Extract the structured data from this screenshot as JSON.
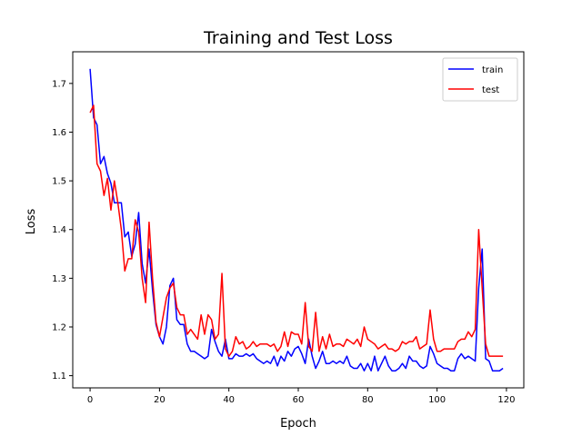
{
  "chart_data": {
    "type": "line",
    "title": "Training and Test Loss",
    "xlabel": "Epoch",
    "ylabel": "Loss",
    "xlim": [
      -5,
      125
    ],
    "ylim": [
      1.075,
      1.765
    ],
    "xticks": [
      0,
      20,
      40,
      60,
      80,
      100,
      120
    ],
    "yticks": [
      1.1,
      1.2,
      1.3,
      1.4,
      1.5,
      1.6,
      1.7
    ],
    "grid": false,
    "legend": "top-right",
    "series": [
      {
        "name": "train",
        "color": "#0000ff",
        "values": [
          1.73,
          1.63,
          1.615,
          1.535,
          1.55,
          1.515,
          1.495,
          1.455,
          1.455,
          1.455,
          1.385,
          1.395,
          1.345,
          1.37,
          1.435,
          1.33,
          1.29,
          1.36,
          1.275,
          1.205,
          1.18,
          1.165,
          1.2,
          1.285,
          1.3,
          1.215,
          1.205,
          1.205,
          1.165,
          1.15,
          1.15,
          1.145,
          1.14,
          1.135,
          1.14,
          1.195,
          1.17,
          1.15,
          1.14,
          1.175,
          1.135,
          1.135,
          1.145,
          1.14,
          1.14,
          1.145,
          1.14,
          1.145,
          1.135,
          1.13,
          1.125,
          1.13,
          1.125,
          1.14,
          1.12,
          1.14,
          1.13,
          1.15,
          1.14,
          1.155,
          1.16,
          1.145,
          1.125,
          1.175,
          1.14,
          1.115,
          1.13,
          1.15,
          1.125,
          1.125,
          1.13,
          1.125,
          1.13,
          1.125,
          1.14,
          1.12,
          1.115,
          1.115,
          1.125,
          1.11,
          1.125,
          1.11,
          1.14,
          1.11,
          1.125,
          1.14,
          1.12,
          1.11,
          1.11,
          1.115,
          1.125,
          1.115,
          1.14,
          1.13,
          1.13,
          1.12,
          1.115,
          1.12,
          1.16,
          1.145,
          1.125,
          1.12,
          1.115,
          1.115,
          1.11,
          1.11,
          1.135,
          1.145,
          1.135,
          1.14,
          1.135,
          1.13,
          1.28,
          1.36,
          1.135,
          1.13,
          1.11,
          1.11,
          1.11,
          1.115
        ]
      },
      {
        "name": "test",
        "color": "#ff0000",
        "values": [
          1.64,
          1.655,
          1.535,
          1.52,
          1.47,
          1.505,
          1.44,
          1.5,
          1.455,
          1.4,
          1.315,
          1.34,
          1.34,
          1.42,
          1.395,
          1.3,
          1.25,
          1.415,
          1.3,
          1.21,
          1.18,
          1.22,
          1.26,
          1.28,
          1.29,
          1.24,
          1.225,
          1.225,
          1.185,
          1.195,
          1.185,
          1.175,
          1.225,
          1.185,
          1.225,
          1.215,
          1.175,
          1.185,
          1.31,
          1.155,
          1.14,
          1.15,
          1.18,
          1.165,
          1.17,
          1.155,
          1.16,
          1.17,
          1.16,
          1.165,
          1.165,
          1.165,
          1.16,
          1.165,
          1.15,
          1.16,
          1.19,
          1.16,
          1.19,
          1.185,
          1.185,
          1.165,
          1.25,
          1.16,
          1.15,
          1.23,
          1.15,
          1.18,
          1.155,
          1.185,
          1.16,
          1.165,
          1.165,
          1.16,
          1.175,
          1.17,
          1.165,
          1.175,
          1.16,
          1.2,
          1.175,
          1.17,
          1.165,
          1.155,
          1.16,
          1.165,
          1.155,
          1.155,
          1.15,
          1.155,
          1.17,
          1.165,
          1.17,
          1.17,
          1.18,
          1.155,
          1.16,
          1.165,
          1.235,
          1.175,
          1.15,
          1.15,
          1.155,
          1.155,
          1.155,
          1.155,
          1.17,
          1.175,
          1.175,
          1.19,
          1.18,
          1.195,
          1.4,
          1.28,
          1.165,
          1.14,
          1.14,
          1.14,
          1.14,
          1.14
        ]
      }
    ]
  }
}
